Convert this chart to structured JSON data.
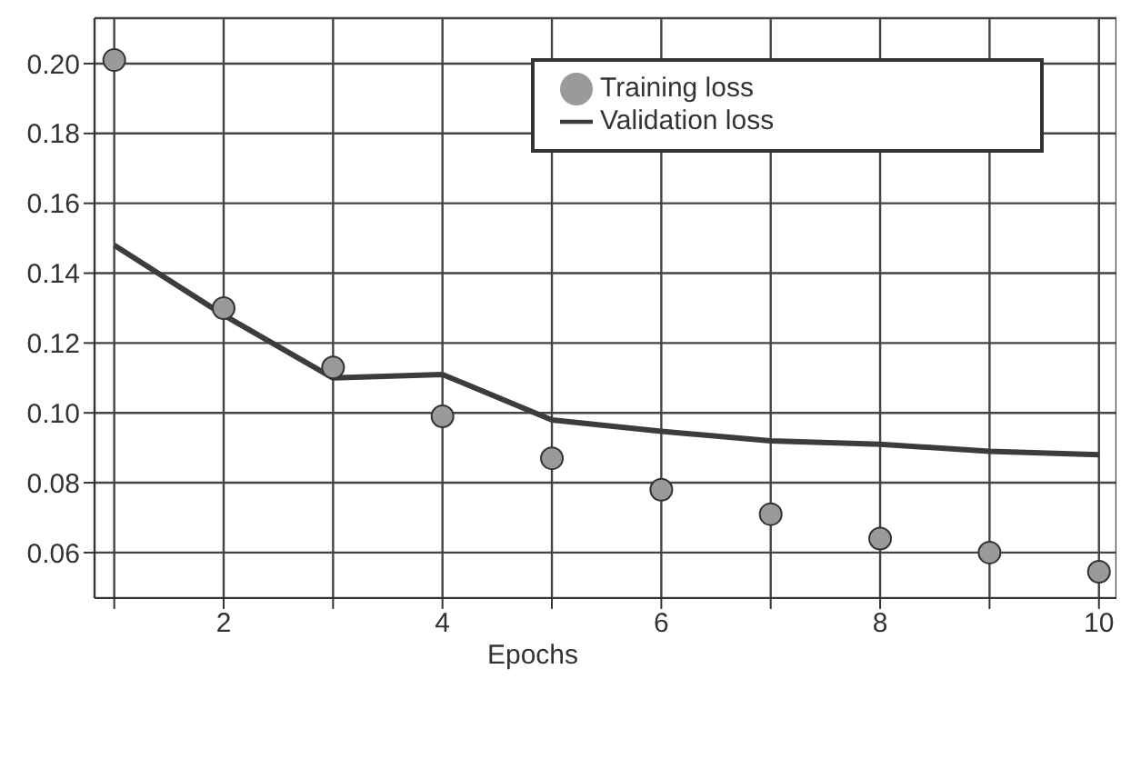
{
  "chart_data": {
    "type": "scatter",
    "xlabel": "Epochs",
    "x": [
      1,
      2,
      3,
      4,
      5,
      6,
      7,
      8,
      9,
      10
    ],
    "series": [
      {
        "name": "Training loss",
        "marker": "circle",
        "color": "#9a9a9a",
        "values": [
          0.201,
          0.13,
          0.113,
          0.099,
          0.087,
          0.078,
          0.071,
          0.064,
          0.06,
          0.0545
        ]
      },
      {
        "name": "Validation loss",
        "type": "line",
        "marker": "none",
        "color": "#3c3c3c",
        "values": [
          0.148,
          0.128,
          0.11,
          0.111,
          0.098,
          0.0947,
          0.092,
          0.091,
          0.089,
          0.088
        ]
      }
    ],
    "xlim": [
      0.82,
      10.16
    ],
    "xticks": [
      {
        "value": 1,
        "label": null
      },
      2,
      {
        "value": 3,
        "label": null
      },
      4,
      {
        "value": 5,
        "label": null
      },
      6,
      {
        "value": 7,
        "label": null
      },
      8,
      {
        "value": 9,
        "label": null
      },
      10
    ],
    "ylim": [
      0.047,
      0.213
    ],
    "yticks": [
      {
        "value": 0.06,
        "label": "0.06"
      },
      {
        "value": 0.08,
        "label": "0.08"
      },
      {
        "value": 0.1,
        "label": "0.10"
      },
      {
        "value": 0.12,
        "label": "0.12"
      },
      {
        "value": 0.14,
        "label": "0.14"
      },
      {
        "value": 0.16,
        "label": "0.16"
      },
      {
        "value": 0.18,
        "label": "0.18"
      },
      {
        "value": 0.2,
        "label": "0.20"
      }
    ],
    "grid": true,
    "legend": "top right",
    "line_style": "solid"
  }
}
